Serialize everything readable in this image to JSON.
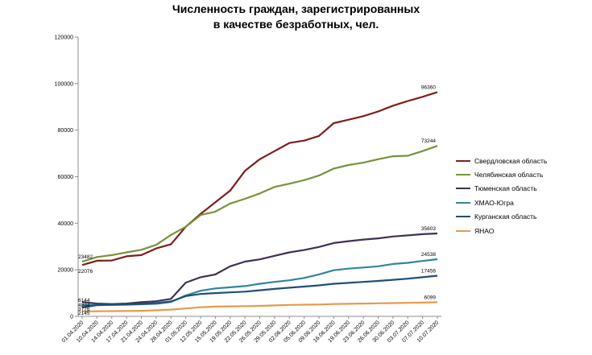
{
  "chart_data": {
    "type": "line",
    "title_line1": "Численность граждан, зарегистрированных",
    "title_line2": "в качестве безработных, чел.",
    "ylim": [
      0,
      120000
    ],
    "yticks": [
      "0",
      "20000",
      "40000",
      "60000",
      "80000",
      "100000",
      "120000"
    ],
    "categories": [
      "01.04.2020",
      "10.04.2020",
      "14.04.2020",
      "17.04.2020",
      "21.04.2020",
      "24.04.2020",
      "28.04.2020",
      "01.05.2020",
      "12.05.2020",
      "15.05.2020",
      "19.05.2020",
      "22.05.2020",
      "26.05.2020",
      "29.05.2020",
      "02.06.2020",
      "05.06.2020",
      "09.06.2020",
      "16.06.2020",
      "19.06.2020",
      "23.06.2020",
      "26.06.2020",
      "30.06.2020",
      "03.07.2020",
      "07.07.2020",
      "10.07.2020"
    ],
    "legend_position": "right",
    "grid": false,
    "series": [
      {
        "name": "Свердловская область",
        "color": "#7f1d1d",
        "values": [
          22076,
          23900,
          24000,
          25800,
          26300,
          29200,
          31000,
          38500,
          44000,
          49000,
          54000,
          62500,
          67500,
          71000,
          74500,
          75500,
          77500,
          83000,
          84500,
          86000,
          88000,
          90500,
          92500,
          94300,
          96360
        ],
        "start_label": "22076",
        "end_label": "96360"
      },
      {
        "name": "Челябинская область",
        "color": "#77933c",
        "values": [
          23482,
          25500,
          26300,
          27500,
          28600,
          30700,
          35000,
          38500,
          43500,
          45000,
          48500,
          50500,
          52800,
          55600,
          57000,
          58500,
          60500,
          63500,
          65000,
          66000,
          67500,
          68800,
          69000,
          71000,
          73244
        ],
        "start_label": "23482",
        "end_label": "73244"
      },
      {
        "name": "Тюменская область",
        "color": "#403152",
        "values": [
          6144,
          5500,
          5300,
          5500,
          6100,
          6500,
          7500,
          14500,
          16800,
          18000,
          21500,
          23500,
          24500,
          26000,
          27500,
          28500,
          29800,
          31500,
          32300,
          33000,
          33500,
          34300,
          34800,
          35300,
          35603
        ],
        "start_label": "6144",
        "end_label": "35603"
      },
      {
        "name": "ХМАО-Югра",
        "color": "#31859c",
        "values": [
          4834,
          4900,
          4900,
          5000,
          5200,
          5400,
          6200,
          9000,
          11000,
          12000,
          12500,
          13000,
          14000,
          14800,
          15500,
          16500,
          18000,
          19800,
          20500,
          21000,
          21500,
          22500,
          23000,
          23800,
          24538
        ],
        "start_label": "4834",
        "end_label": "24538"
      },
      {
        "name": "Курганская область",
        "color": "#1f4e79",
        "values": [
          3776,
          4800,
          5000,
          5100,
          5400,
          5700,
          6400,
          8700,
          9600,
          10000,
          10300,
          10600,
          11200,
          11800,
          12300,
          12800,
          13300,
          14000,
          14400,
          14800,
          15200,
          15700,
          16200,
          16800,
          17456
        ],
        "start_label": "3776",
        "end_label": "17456"
      },
      {
        "name": "ЯНАО",
        "color": "#e59a4b",
        "values": [
          2145,
          2200,
          2250,
          2300,
          2400,
          2600,
          2900,
          3400,
          3900,
          4200,
          4300,
          4400,
          4500,
          4700,
          4900,
          5000,
          5100,
          5300,
          5400,
          5500,
          5600,
          5700,
          5800,
          5900,
          6099
        ],
        "start_label": "2145",
        "end_label": "6099"
      }
    ]
  }
}
